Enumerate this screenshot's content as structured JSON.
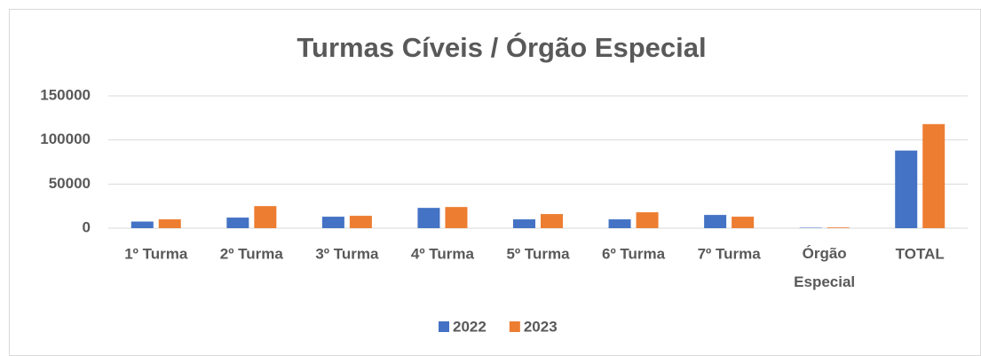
{
  "chart_data": {
    "type": "bar",
    "title": "Turmas Cíveis / Órgão Especial",
    "categories": [
      "1º Turma",
      "2º Turma",
      "3º Turma",
      "4º Turma",
      "5º Turma",
      "6º Turma",
      "7º Turma",
      "Órgão Especial",
      "TOTAL"
    ],
    "series": [
      {
        "name": "2022",
        "color": "#4472c4",
        "values": [
          7500,
          12000,
          13000,
          23000,
          10000,
          10000,
          15000,
          500,
          88000
        ]
      },
      {
        "name": "2023",
        "color": "#ed7d31",
        "values": [
          10000,
          25000,
          14000,
          24000,
          16000,
          18000,
          13000,
          800,
          118000
        ]
      }
    ],
    "ylim": [
      0,
      150000
    ],
    "yticks": [
      0,
      50000,
      100000,
      150000
    ],
    "grid": true,
    "legend": "bottom"
  }
}
